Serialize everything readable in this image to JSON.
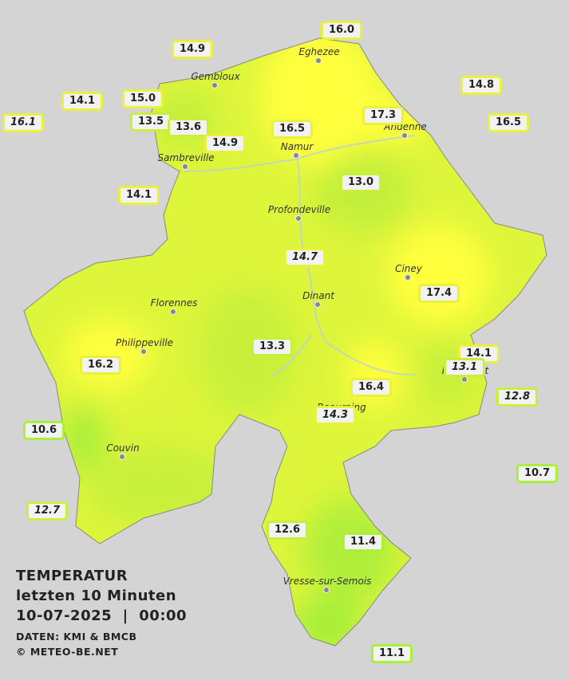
{
  "title": {
    "line1": "TEMPERATUR",
    "line2": "letzten 10 Minuten",
    "line3": "10-07-2025  |  00:00",
    "source": "DATEN: KMI & BMCB",
    "copyright": "© METEO-BE.NET"
  },
  "cities": [
    "Eghezee",
    "Gembloux",
    "Andenne",
    "Namur",
    "Sambreville",
    "Profondeville",
    "Ciney",
    "Dinant",
    "Florennes",
    "Philippeville",
    "Rochefort",
    "Beauraing",
    "Couvin",
    "Vresse-sur-Semois"
  ],
  "stations": [
    {
      "label": "16.0",
      "italic": false
    },
    {
      "label": "14.9",
      "italic": false
    },
    {
      "label": "14.1",
      "italic": false
    },
    {
      "label": "15.0",
      "italic": false
    },
    {
      "label": "16.1",
      "italic": true
    },
    {
      "label": "13.5",
      "italic": false
    },
    {
      "label": "13.6",
      "italic": false
    },
    {
      "label": "14.9",
      "italic": false
    },
    {
      "label": "16.5",
      "italic": false
    },
    {
      "label": "17.3",
      "italic": false
    },
    {
      "label": "14.8",
      "italic": false
    },
    {
      "label": "16.5",
      "italic": false
    },
    {
      "label": "14.1",
      "italic": false
    },
    {
      "label": "13.0",
      "italic": false
    },
    {
      "label": "14.7",
      "italic": true
    },
    {
      "label": "17.4",
      "italic": false
    },
    {
      "label": "13.3",
      "italic": false
    },
    {
      "label": "16.2",
      "italic": false
    },
    {
      "label": "14.1",
      "italic": false
    },
    {
      "label": "13.1",
      "italic": true
    },
    {
      "label": "12.8",
      "italic": true
    },
    {
      "label": "16.4",
      "italic": false
    },
    {
      "label": "14.3",
      "italic": true
    },
    {
      "label": "10.6",
      "italic": false
    },
    {
      "label": "10.7",
      "italic": false
    },
    {
      "label": "12.7",
      "italic": true
    },
    {
      "label": "12.6",
      "italic": false
    },
    {
      "label": "11.4",
      "italic": false
    },
    {
      "label": "11.1",
      "italic": false
    }
  ]
}
